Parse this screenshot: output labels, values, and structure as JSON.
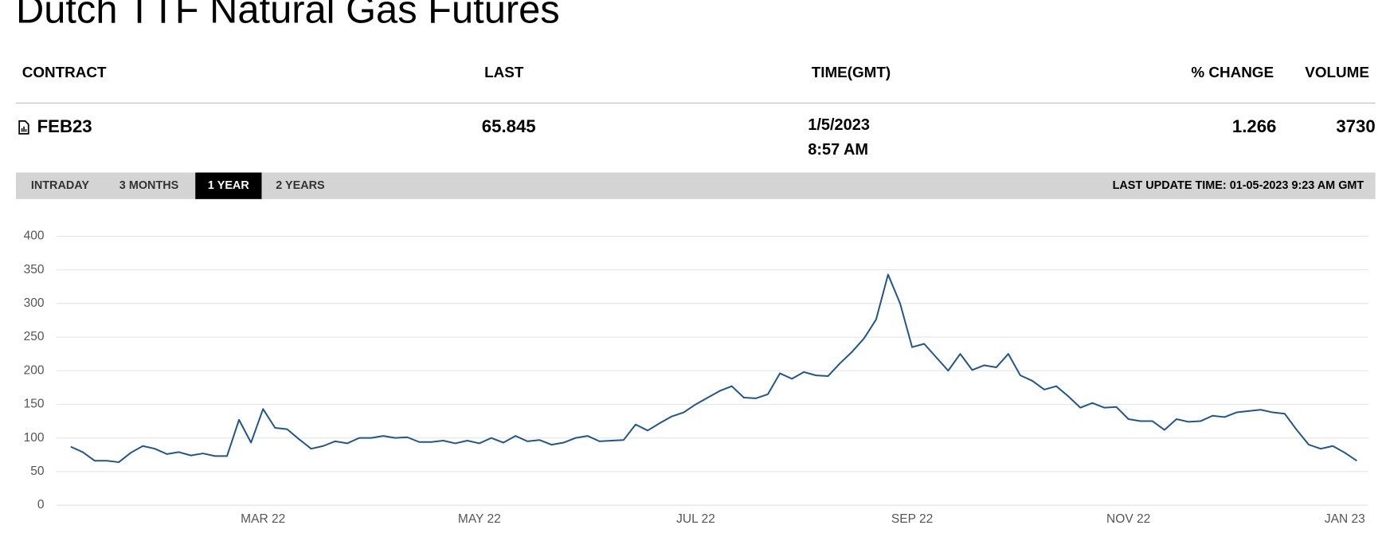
{
  "title": "Dutch TTF Natural Gas Futures",
  "table": {
    "headers": [
      "CONTRACT",
      "LAST",
      "TIME(GMT)",
      "% CHANGE",
      "VOLUME"
    ],
    "row": {
      "contract": "FEB23",
      "last": "65.845",
      "date": "1/5/2023",
      "time": "8:57 AM",
      "change": "1.266",
      "volume": "3730"
    }
  },
  "tabs": [
    "INTRADAY",
    "3 MONTHS",
    "1 YEAR",
    "2 YEARS"
  ],
  "last_update": "LAST UPDATE TIME: 01-05-2023 9:23 AM GMT",
  "chart_data": {
    "type": "line",
    "categories": [
      null,
      null,
      null,
      null,
      null,
      null,
      null,
      null,
      null,
      null,
      null,
      null,
      null,
      null,
      null,
      null,
      "MAR 22",
      null,
      null,
      null,
      null,
      null,
      null,
      null,
      null,
      null,
      null,
      null,
      null,
      null,
      null,
      null,
      null,
      null,
      "MAY 22",
      null,
      null,
      null,
      null,
      null,
      null,
      null,
      null,
      null,
      null,
      null,
      null,
      null,
      null,
      null,
      null,
      null,
      "JUL 22",
      null,
      null,
      null,
      null,
      null,
      null,
      null,
      null,
      null,
      null,
      null,
      null,
      null,
      null,
      null,
      null,
      null,
      "SEP 22",
      null,
      null,
      null,
      null,
      null,
      null,
      null,
      null,
      null,
      null,
      null,
      null,
      null,
      null,
      null,
      null,
      null,
      "NOV 22",
      null,
      null,
      null,
      null,
      null,
      null,
      null,
      null,
      null,
      null,
      null,
      null,
      null,
      null,
      null,
      null,
      null,
      "JAN 23",
      null
    ],
    "values": [
      87,
      79,
      66,
      66,
      64,
      78,
      88,
      84,
      76,
      79,
      74,
      77,
      73,
      73,
      127,
      93,
      143,
      115,
      113,
      98,
      84,
      88,
      95,
      92,
      100,
      100,
      103,
      100,
      101,
      94,
      94,
      96,
      92,
      96,
      92,
      100,
      93,
      103,
      95,
      97,
      90,
      93,
      100,
      103,
      95,
      96,
      97,
      120,
      111,
      122,
      132,
      138,
      150,
      160,
      170,
      177,
      160,
      159,
      165,
      196,
      188,
      198,
      193,
      192,
      211,
      228,
      248,
      276,
      343,
      300,
      235,
      240,
      220,
      200,
      225,
      201,
      208,
      205,
      225,
      193,
      185,
      172,
      177,
      162,
      145,
      152,
      145,
      146,
      128,
      125,
      125,
      112,
      128,
      124,
      125,
      133,
      131,
      138,
      140,
      142,
      138,
      136,
      112,
      90,
      84,
      88,
      78,
      66
    ],
    "color": "#1f5591",
    "ylim": [
      0,
      400
    ],
    "yticks": [
      0,
      50,
      100,
      150,
      200,
      250,
      300,
      350,
      400
    ],
    "grid": true
  }
}
